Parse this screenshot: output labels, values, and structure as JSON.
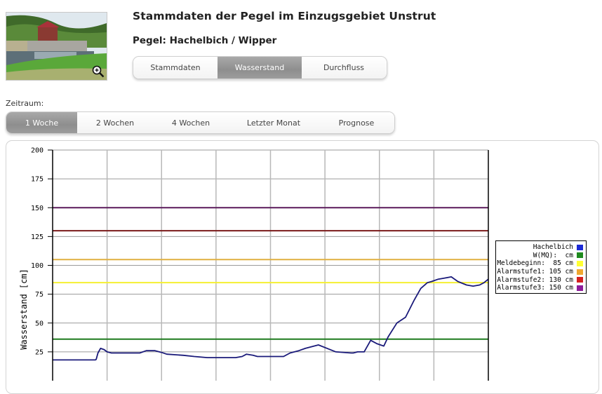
{
  "header": {
    "title": "Stammdaten der Pegel im Einzugsgebiet Unstrut",
    "subtitle": "Pegel: Hachelbich / Wipper",
    "thumbnail_icon": "zoom-in-icon"
  },
  "main_tabs": [
    {
      "label": "Stammdaten",
      "active": false
    },
    {
      "label": "Wasserstand",
      "active": true
    },
    {
      "label": "Durchfluss",
      "active": false
    }
  ],
  "period": {
    "label": "Zeitraum:",
    "options": [
      {
        "label": "1 Woche",
        "active": true
      },
      {
        "label": "2 Wochen",
        "active": false
      },
      {
        "label": "4 Wochen",
        "active": false
      },
      {
        "label": "Letzter Monat",
        "active": false
      },
      {
        "label": "Prognose",
        "active": false
      }
    ]
  },
  "legend": [
    {
      "label": "Hachelbich",
      "color": "#1c2ad6"
    },
    {
      "label": "W(MQ):  cm",
      "color": "#1e8a1e"
    },
    {
      "label": "Meldebeginn:  85 cm",
      "color": "#ffff33"
    },
    {
      "label": "Alarmstufe1: 105 cm",
      "color": "#f0a830"
    },
    {
      "label": "Alarmstufe2: 130 cm",
      "color": "#d42020"
    },
    {
      "label": "Alarmstufe3: 150 cm",
      "color": "#8e1c9a"
    }
  ],
  "chart_data": {
    "type": "line",
    "title": "",
    "xlabel": "",
    "ylabel": "Wasserstand [cm]",
    "ylim": [
      0,
      200
    ],
    "yticks": [
      25,
      50,
      75,
      100,
      125,
      150,
      175,
      200
    ],
    "x_divisions": 8,
    "grid": true,
    "legend_position": "right",
    "thresholds": [
      {
        "name": "W(MQ)",
        "value": 36,
        "color": "#1e7a1e"
      },
      {
        "name": "Meldebeginn",
        "value": 85,
        "color": "#f5f032"
      },
      {
        "name": "Alarmstufe1",
        "value": 105,
        "color": "#e0b040"
      },
      {
        "name": "Alarmstufe2",
        "value": 130,
        "color": "#7a1a1a"
      },
      {
        "name": "Alarmstufe3",
        "value": 150,
        "color": "#5a1a5a"
      }
    ],
    "series": [
      {
        "name": "Hachelbich",
        "color": "#1a1a7a",
        "x": [
          0,
          0.098,
          0.1,
          0.104,
          0.11,
          0.118,
          0.125,
          0.135,
          0.15,
          0.2,
          0.215,
          0.235,
          0.25,
          0.262,
          0.3,
          0.325,
          0.355,
          0.42,
          0.435,
          0.445,
          0.46,
          0.47,
          0.48,
          0.53,
          0.545,
          0.565,
          0.58,
          0.61,
          0.63,
          0.65,
          0.685,
          0.69,
          0.7,
          0.715,
          0.73,
          0.745,
          0.76,
          0.77,
          0.79,
          0.81,
          0.83,
          0.845,
          0.86,
          0.87,
          0.885,
          0.9,
          0.915,
          0.93,
          0.95,
          0.965,
          0.98,
          0.99,
          1.0
        ],
        "values": [
          18,
          18,
          18.5,
          24,
          28,
          27,
          25,
          24,
          24,
          24,
          26,
          26,
          24.5,
          23,
          22,
          21,
          20,
          20,
          21,
          23,
          22,
          21,
          21,
          21,
          24,
          26,
          28,
          31,
          28,
          25,
          24,
          24,
          25,
          25,
          35,
          32,
          30,
          38,
          50,
          55,
          70,
          80,
          85,
          86,
          88,
          89,
          90,
          86,
          83,
          82,
          83,
          85,
          88
        ]
      }
    ]
  }
}
